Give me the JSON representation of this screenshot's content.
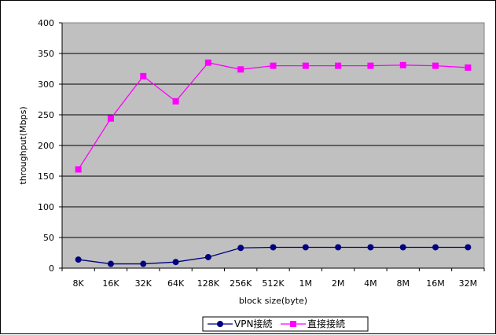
{
  "chart_data": {
    "type": "line",
    "title": "",
    "xlabel": "block size(byte)",
    "ylabel": "throughput(Mbps)",
    "ylim": [
      0,
      400
    ],
    "yticks": [
      0,
      50,
      100,
      150,
      200,
      250,
      300,
      350,
      400
    ],
    "grid": true,
    "legend_position": "bottom",
    "categories": [
      "8K",
      "16K",
      "32K",
      "64K",
      "128K",
      "256K",
      "512K",
      "1M",
      "2M",
      "4M",
      "8M",
      "16M",
      "32M"
    ],
    "series": [
      {
        "name": "VPN接続",
        "color": "#000080",
        "marker": "circle",
        "values": [
          14,
          7,
          7,
          10,
          18,
          33,
          34,
          34,
          34,
          34,
          34,
          34,
          34
        ]
      },
      {
        "name": "直接接続",
        "color": "#ff00ff",
        "marker": "square",
        "values": [
          161,
          244,
          313,
          272,
          335,
          324,
          330,
          330,
          330,
          330,
          331,
          330,
          327
        ]
      }
    ],
    "plot_background": "#c0c0c0",
    "gridline_color": "#000000"
  }
}
